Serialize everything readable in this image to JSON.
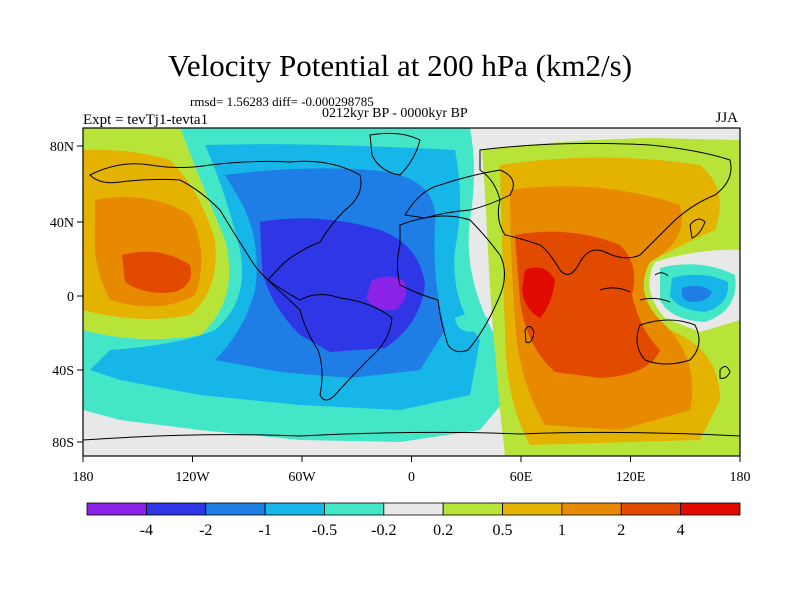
{
  "title": "Velocity Potential at 200 hPa (km2/s)",
  "stats": "rmsd= 1.56283 diff= -0.000298785",
  "period": "0212kyr BP - 0000kyr BP",
  "experiment": "Expt = tevTj1-tevta1",
  "season": "JJA",
  "lon_ticks": [
    "180",
    "120W",
    "60W",
    "0",
    "60E",
    "120E",
    "180"
  ],
  "lat_ticks": [
    "80N",
    "40N",
    "0",
    "40S",
    "80S"
  ],
  "colorbar": {
    "colors": [
      "#8b22e8",
      "#2e36e6",
      "#1e7ee6",
      "#16b6e8",
      "#44e6c8",
      "#e8e8e8",
      "#b8e43a",
      "#e4b200",
      "#e88a00",
      "#e24a00",
      "#e00a00"
    ],
    "labels": [
      "-4",
      "-2",
      "-1",
      "-0.5",
      "-0.2",
      "0.2",
      "0.5",
      "1",
      "2",
      "4"
    ]
  },
  "palette": {
    "ocean_bg": "#e8e8e8",
    "coast": "#000000"
  }
}
